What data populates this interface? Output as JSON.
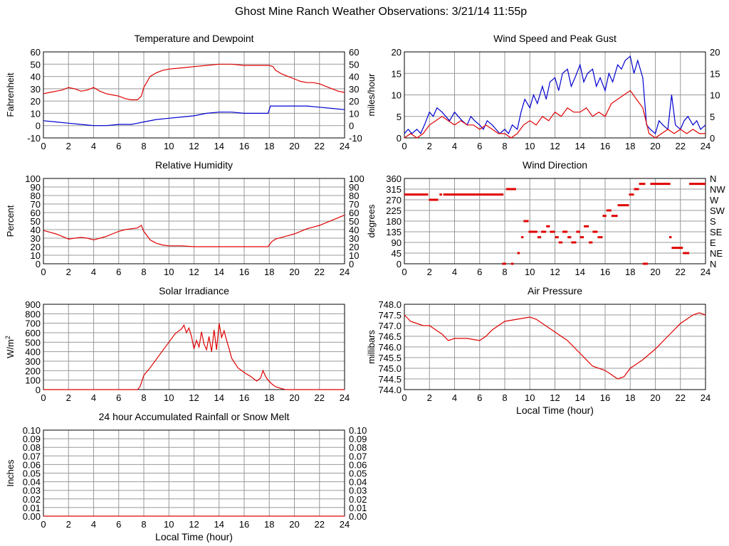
{
  "page": {
    "title": "Ghost Mine Ranch Weather Observations: 3/21/14 11:55p"
  },
  "colors": {
    "grid": "#999999",
    "axis": "#000000",
    "red_series": "#e00000",
    "blue_series": "#0000d0"
  },
  "chart_data": [
    {
      "id": "temp",
      "type": "line",
      "title": "Temperature and Dewpoint",
      "ylabel": "Fahrenheit",
      "xlabel": "",
      "xlim": [
        0,
        24
      ],
      "ylim": [
        -10,
        60
      ],
      "yticks": [
        -10,
        0,
        10,
        20,
        30,
        40,
        50,
        60
      ],
      "right_axis": true,
      "grid": true,
      "series": [
        {
          "color": "#e00000",
          "x": [
            0,
            0.5,
            1,
            1.5,
            2,
            2.5,
            3,
            3.5,
            4,
            4.5,
            5,
            5.5,
            6,
            6.5,
            7,
            7.5,
            7.8,
            8,
            8.5,
            9,
            9.5,
            10,
            11,
            12,
            13,
            14,
            15,
            16,
            17,
            18,
            18.3,
            18.5,
            19,
            19.5,
            20,
            20.5,
            21,
            21.5,
            22,
            22.5,
            23,
            23.5,
            24
          ],
          "y": [
            26,
            27,
            28,
            29,
            31,
            30,
            28,
            29,
            31,
            28,
            26,
            25,
            24,
            22,
            21,
            21,
            24,
            31,
            40,
            43,
            45,
            46,
            47,
            48,
            49,
            50,
            50,
            49,
            49,
            49,
            48,
            45,
            42,
            40,
            38,
            36,
            35,
            35,
            34,
            32,
            30,
            28,
            27
          ]
        },
        {
          "color": "#0000d0",
          "x": [
            0,
            1,
            2,
            3,
            4,
            5,
            6,
            7,
            7.5,
            8,
            9,
            10,
            11,
            12,
            13,
            14,
            15,
            16,
            17,
            17.9,
            18.1,
            19,
            20,
            21,
            22,
            23,
            24
          ],
          "y": [
            4,
            3,
            2,
            1,
            0,
            0,
            1,
            1,
            2,
            3,
            5,
            6,
            7,
            8,
            10,
            11,
            11,
            10,
            10,
            10,
            16,
            16,
            16,
            16,
            15,
            14,
            13
          ]
        }
      ]
    },
    {
      "id": "wind",
      "type": "line",
      "title": "Wind Speed and Peak Gust",
      "ylabel": "miles/hour",
      "xlabel": "",
      "xlim": [
        0,
        24
      ],
      "ylim": [
        0,
        20
      ],
      "yticks": [
        0,
        5,
        10,
        15,
        20
      ],
      "right_axis": true,
      "grid": true,
      "series": [
        {
          "color": "#0000d0",
          "x": [
            0,
            0.3,
            0.6,
            1,
            1.3,
            1.6,
            2,
            2.3,
            2.6,
            3,
            3.3,
            3.6,
            4,
            4.3,
            4.6,
            5,
            5.3,
            5.6,
            6,
            6.3,
            6.6,
            7,
            7.3,
            7.6,
            8,
            8.3,
            8.6,
            9,
            9.3,
            9.6,
            10,
            10.3,
            10.6,
            11,
            11.3,
            11.6,
            12,
            12.3,
            12.6,
            13,
            13.3,
            13.6,
            14,
            14.3,
            14.6,
            15,
            15.3,
            15.6,
            16,
            16.3,
            16.6,
            17,
            17.3,
            17.6,
            18,
            18.3,
            18.6,
            19,
            19.3,
            19.6,
            20,
            20.3,
            20.6,
            21,
            21.3,
            21.6,
            22,
            22.3,
            22.6,
            23,
            23.3,
            23.6,
            24
          ],
          "y": [
            1,
            2,
            1,
            2,
            1,
            3,
            6,
            5,
            7,
            6,
            5,
            4,
            6,
            5,
            4,
            3,
            5,
            4,
            3,
            2,
            4,
            3,
            2,
            1,
            2,
            1,
            3,
            2,
            6,
            9,
            7,
            10,
            8,
            12,
            9,
            13,
            14,
            11,
            15,
            16,
            12,
            14,
            17,
            13,
            15,
            16,
            12,
            14,
            11,
            15,
            13,
            17,
            16,
            18,
            19,
            15,
            18,
            14,
            3,
            2,
            1,
            4,
            3,
            2,
            10,
            3,
            2,
            4,
            5,
            3,
            4,
            2,
            3
          ]
        },
        {
          "color": "#e00000",
          "x": [
            0,
            0.5,
            1,
            1.5,
            2,
            2.5,
            3,
            3.5,
            4,
            4.5,
            5,
            5.5,
            6,
            6.5,
            7,
            7.5,
            8,
            8.5,
            9,
            9.5,
            10,
            10.5,
            11,
            11.5,
            12,
            12.5,
            13,
            13.5,
            14,
            14.5,
            15,
            15.5,
            16,
            16.5,
            17,
            17.5,
            18,
            18.5,
            19,
            19.5,
            20,
            20.5,
            21,
            21.5,
            22,
            22.5,
            23,
            23.5,
            24
          ],
          "y": [
            0,
            1,
            0,
            1,
            3,
            4,
            5,
            4,
            3,
            4,
            3,
            3,
            2,
            3,
            2,
            1,
            1,
            0,
            1,
            3,
            4,
            3,
            5,
            4,
            6,
            5,
            7,
            6,
            6,
            7,
            5,
            6,
            5,
            8,
            9,
            10,
            11,
            9,
            7,
            1,
            0,
            1,
            2,
            1,
            2,
            1,
            2,
            1,
            1
          ]
        }
      ]
    },
    {
      "id": "humidity",
      "type": "line",
      "title": "Relative Humidity",
      "ylabel": "Percent",
      "xlabel": "",
      "xlim": [
        0,
        24
      ],
      "ylim": [
        0,
        100
      ],
      "yticks": [
        0,
        10,
        20,
        30,
        40,
        50,
        60,
        70,
        80,
        90,
        100
      ],
      "right_axis": true,
      "grid": true,
      "series": [
        {
          "color": "#e00000",
          "x": [
            0,
            0.5,
            1,
            1.5,
            2,
            2.5,
            3,
            3.5,
            4,
            4.5,
            5,
            5.5,
            6,
            6.5,
            7,
            7.5,
            7.8,
            8,
            8.5,
            9,
            9.5,
            10,
            11,
            12,
            13,
            14,
            15,
            16,
            17,
            17.9,
            18.2,
            18.5,
            19,
            19.5,
            20,
            20.5,
            21,
            21.5,
            22,
            22.5,
            23,
            23.5,
            24
          ],
          "y": [
            39,
            37,
            35,
            32,
            29,
            30,
            31,
            30,
            28,
            30,
            32,
            35,
            38,
            40,
            41,
            42,
            45,
            38,
            28,
            24,
            22,
            21,
            21,
            20,
            20,
            20,
            20,
            20,
            20,
            20,
            26,
            29,
            31,
            33,
            35,
            38,
            41,
            43,
            45,
            48,
            51,
            54,
            57
          ]
        }
      ]
    },
    {
      "id": "winddir",
      "type": "scatter",
      "title": "Wind Direction",
      "ylabel": "degrees",
      "xlabel": "",
      "xlim": [
        0,
        24
      ],
      "ylim": [
        0,
        360
      ],
      "yticks": [
        0,
        45,
        90,
        135,
        180,
        225,
        270,
        315,
        360
      ],
      "right_labels": [
        "N",
        "NE",
        "E",
        "SE",
        "S",
        "SW",
        "W",
        "NW",
        "N"
      ],
      "grid": true,
      "series": [
        {
          "color": "#e00000",
          "segments": [
            [
              0,
              1.9,
              292
            ],
            [
              1.95,
              2.7,
              270
            ],
            [
              2.8,
              3.0,
              292
            ],
            [
              3.1,
              7.9,
              292
            ],
            [
              7.8,
              8.1,
              0
            ],
            [
              8.1,
              8.9,
              315
            ],
            [
              8.5,
              8.7,
              0
            ],
            [
              9.0,
              9.2,
              45
            ],
            [
              9.3,
              9.5,
              112
            ],
            [
              9.5,
              9.9,
              180
            ],
            [
              9.9,
              10.3,
              135
            ],
            [
              10.3,
              10.6,
              135
            ],
            [
              10.6,
              10.9,
              112
            ],
            [
              10.9,
              11.3,
              135
            ],
            [
              11.3,
              11.6,
              158
            ],
            [
              11.6,
              12.0,
              135
            ],
            [
              12.0,
              12.3,
              112
            ],
            [
              12.3,
              12.6,
              90
            ],
            [
              12.6,
              13.0,
              135
            ],
            [
              13.0,
              13.3,
              112
            ],
            [
              13.3,
              13.7,
              90
            ],
            [
              13.7,
              14.0,
              135
            ],
            [
              14.0,
              14.3,
              112
            ],
            [
              14.3,
              14.7,
              158
            ],
            [
              14.7,
              15.0,
              90
            ],
            [
              15.0,
              15.4,
              135
            ],
            [
              15.4,
              15.8,
              112
            ],
            [
              15.8,
              16.1,
              202
            ],
            [
              16.1,
              16.5,
              225
            ],
            [
              16.5,
              17.0,
              202
            ],
            [
              17.0,
              17.9,
              247
            ],
            [
              17.9,
              18.3,
              292
            ],
            [
              18.3,
              18.7,
              315
            ],
            [
              18.7,
              19.2,
              337
            ],
            [
              19.0,
              19.4,
              0
            ],
            [
              19.6,
              21.2,
              337
            ],
            [
              21.1,
              21.3,
              112
            ],
            [
              21.3,
              22.2,
              67
            ],
            [
              22.2,
              22.7,
              45
            ],
            [
              22.7,
              24,
              337
            ]
          ]
        }
      ]
    },
    {
      "id": "solar",
      "type": "line",
      "title": "Solar Irradiance",
      "ylabel": "W/m2",
      "xlabel": "",
      "xlim": [
        0,
        24
      ],
      "ylim": [
        0,
        900
      ],
      "yticks": [
        0,
        100,
        200,
        300,
        400,
        500,
        600,
        700,
        800,
        900
      ],
      "right_axis": false,
      "grid": true,
      "series": [
        {
          "color": "#e00000",
          "x": [
            0,
            7.5,
            7.7,
            8,
            8.5,
            9,
            9.5,
            10,
            10.5,
            11,
            11.2,
            11.4,
            11.6,
            11.8,
            12,
            12.2,
            12.4,
            12.6,
            12.8,
            13,
            13.2,
            13.4,
            13.6,
            13.8,
            14,
            14.2,
            14.4,
            14.6,
            14.8,
            15,
            15.5,
            16,
            16.5,
            17,
            17.3,
            17.5,
            17.7,
            17.9,
            18.2,
            18.5,
            19,
            19.3,
            19.6,
            20,
            24
          ],
          "y": [
            0,
            0,
            30,
            150,
            230,
            320,
            410,
            500,
            590,
            640,
            680,
            600,
            650,
            560,
            430,
            520,
            450,
            610,
            480,
            420,
            560,
            400,
            630,
            420,
            700,
            550,
            620,
            520,
            430,
            330,
            230,
            180,
            140,
            90,
            120,
            200,
            140,
            100,
            60,
            30,
            10,
            0,
            0,
            0,
            0
          ]
        }
      ]
    },
    {
      "id": "pressure",
      "type": "line",
      "title": "Air Pressure",
      "ylabel": "millibars",
      "xlabel": "Local Time (hour)",
      "xlim": [
        0,
        24
      ],
      "ylim": [
        744.0,
        748.0
      ],
      "yticks": [
        744.0,
        744.5,
        745.0,
        745.5,
        746.0,
        746.5,
        747.0,
        747.5,
        748.0
      ],
      "right_axis": false,
      "grid": true,
      "series": [
        {
          "color": "#e00000",
          "x": [
            0,
            0.5,
            1,
            1.5,
            2,
            2.5,
            3,
            3.5,
            4,
            5,
            6,
            6.5,
            7,
            7.5,
            8,
            9,
            10,
            10.5,
            11,
            11.5,
            12,
            13,
            14,
            15,
            16,
            16.5,
            17,
            17.5,
            18,
            18.5,
            19,
            20,
            21,
            22,
            23,
            23.5,
            24
          ],
          "y": [
            747.5,
            747.2,
            747.1,
            747.0,
            747.0,
            746.8,
            746.6,
            746.3,
            746.4,
            746.4,
            746.3,
            746.5,
            746.8,
            747.0,
            747.2,
            747.3,
            747.4,
            747.3,
            747.1,
            746.9,
            746.7,
            746.3,
            745.7,
            745.1,
            744.9,
            744.7,
            744.5,
            744.6,
            745.0,
            745.2,
            745.4,
            745.9,
            746.5,
            747.1,
            747.5,
            747.6,
            747.5
          ]
        }
      ]
    },
    {
      "id": "rain",
      "type": "line",
      "title": "24 hour Accumulated Rainfall or Snow Melt",
      "ylabel": "Inches",
      "xlabel": "Local Time (hour)",
      "xlim": [
        0,
        24
      ],
      "ylim": [
        0,
        0.1
      ],
      "yticks": [
        0.0,
        0.01,
        0.02,
        0.03,
        0.04,
        0.05,
        0.06,
        0.07,
        0.08,
        0.09,
        0.1
      ],
      "ytick_decimals": 2,
      "right_axis": true,
      "grid": true,
      "series": [
        {
          "color": "#e00000",
          "x": [
            0,
            24
          ],
          "y": [
            0,
            0
          ]
        }
      ]
    }
  ]
}
